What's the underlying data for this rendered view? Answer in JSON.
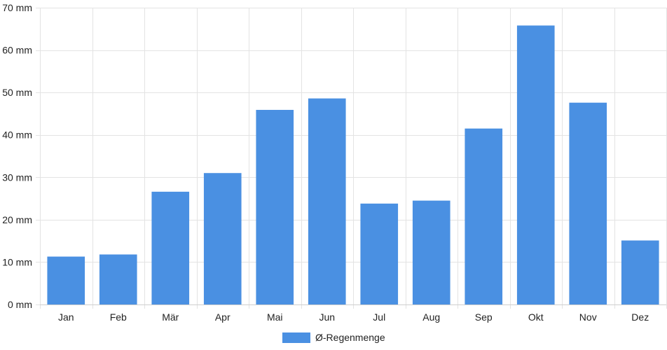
{
  "chart_data": {
    "type": "bar",
    "categories": [
      "Jan",
      "Feb",
      "Mär",
      "Apr",
      "Mai",
      "Jun",
      "Jul",
      "Aug",
      "Sep",
      "Okt",
      "Nov",
      "Dez"
    ],
    "series": [
      {
        "name": "Ø-Regenmenge",
        "color": "#4a90e2",
        "values": [
          11.3,
          11.8,
          26.6,
          31.0,
          45.9,
          48.6,
          23.8,
          24.5,
          41.5,
          65.8,
          47.6,
          15.1
        ]
      }
    ],
    "y_unit_suffix": " mm",
    "ylim": [
      0,
      70
    ],
    "y_ticks": [
      0,
      10,
      20,
      30,
      40,
      50,
      60,
      70
    ],
    "grid": true,
    "legend_position": "bottom-center"
  }
}
